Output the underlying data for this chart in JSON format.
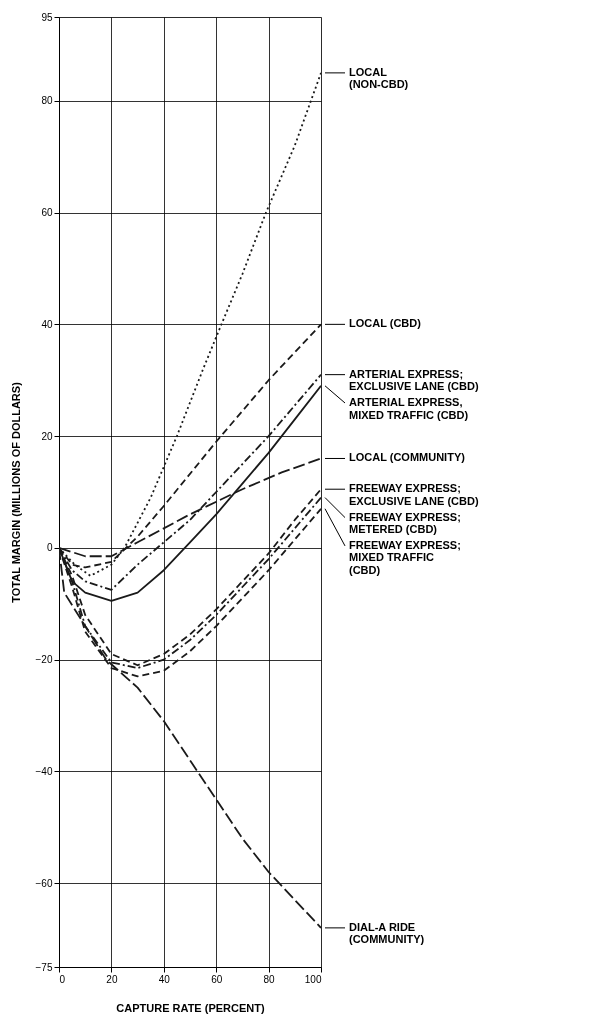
{
  "chart_data": {
    "type": "line",
    "xlabel": "CAPTURE RATE (PERCENT)",
    "ylabel": "TOTAL MARGIN (MILLIONS OF DOLLARS)",
    "xlim": [
      0,
      100
    ],
    "xticks": [
      0,
      20,
      40,
      60,
      80,
      100
    ],
    "ylim": [
      -75,
      95
    ],
    "yticks": [
      -75,
      -60,
      -40,
      -20,
      0,
      20,
      40,
      60,
      80,
      95
    ],
    "grid": true,
    "legend": false,
    "series": [
      {
        "name": "LOCAL\n(NON-CBD)",
        "color": "#1a1a1a",
        "line_style": "dotted",
        "x": [
          0,
          6,
          12,
          20,
          25,
          35,
          45,
          55,
          62,
          70,
          79,
          90,
          100
        ],
        "values": [
          0,
          -3,
          -5,
          -3,
          0,
          9,
          20,
          32,
          40,
          49,
          60,
          72,
          85
        ]
      },
      {
        "name": "LOCAL (CBD)",
        "color": "#1a1a1a",
        "line_style": "dashed",
        "x": [
          0,
          5,
          10,
          20,
          30,
          40,
          60,
          80,
          100
        ],
        "values": [
          0,
          -3,
          -3.5,
          -2.5,
          2,
          7.5,
          19,
          30,
          40
        ]
      },
      {
        "name": "ARTERIAL EXPRESS;\nEXCLUSIVE LANE (CBD)",
        "color": "#1a1a1a",
        "line_style": "dashdot",
        "x": [
          0,
          5,
          10,
          20,
          30,
          40,
          50,
          60,
          70,
          80,
          90,
          100
        ],
        "values": [
          0,
          -4,
          -6,
          -7.5,
          -3,
          1,
          5,
          10,
          15,
          20,
          25.5,
          31
        ]
      },
      {
        "name": "ARTERIAL EXPRESS,\nMIXED TRAFFIC (CBD)",
        "color": "#1a1a1a",
        "line_style": "solid",
        "x": [
          0,
          5,
          10,
          20,
          30,
          40,
          50,
          60,
          70,
          80,
          90,
          100
        ],
        "values": [
          0,
          -6,
          -8,
          -9.5,
          -8,
          -4,
          1,
          6,
          11.5,
          17,
          23,
          29
        ]
      },
      {
        "name": "LOCAL (COMMUNITY)",
        "color": "#1a1a1a",
        "line_style": "longdash",
        "x": [
          0,
          10,
          20,
          30,
          50,
          70,
          85,
          100
        ],
        "values": [
          0,
          -1.5,
          -1.5,
          1,
          6,
          10.5,
          13.5,
          16
        ]
      },
      {
        "name": "FREEWAY EXPRESS;\nEXCLUSIVE LANE (CBD)",
        "color": "#1a1a1a",
        "line_style": "dashed",
        "x": [
          0,
          5,
          10,
          20,
          30,
          40,
          50,
          60,
          70,
          80,
          90,
          100
        ],
        "values": [
          0,
          -5,
          -12,
          -19,
          -21,
          -19,
          -15.5,
          -11,
          -6,
          -1,
          5,
          10.5
        ]
      },
      {
        "name": "FREEWAY EXPRESS;\nMETERED (CBD)",
        "color": "#1a1a1a",
        "line_style": "dashdot",
        "x": [
          0,
          5,
          10,
          20,
          30,
          40,
          50,
          60,
          70,
          80,
          90,
          100
        ],
        "values": [
          0,
          -6,
          -14,
          -20.5,
          -21.5,
          -20,
          -16.5,
          -12,
          -7,
          -2,
          3.5,
          9
        ]
      },
      {
        "name": "FREEWAY EXPRESS;\nMIXED TRAFFIC\n(CBD)",
        "color": "#1a1a1a",
        "line_style": "dashed",
        "x": [
          0,
          5,
          10,
          20,
          30,
          40,
          50,
          60,
          70,
          80,
          90,
          100
        ],
        "values": [
          0,
          -7,
          -15,
          -21.5,
          -23,
          -22,
          -18.5,
          -14,
          -9,
          -4,
          1.5,
          7
        ]
      },
      {
        "name": "DIAL-A RIDE\n(COMMUNITY)",
        "color": "#1a1a1a",
        "line_style": "longdash",
        "x": [
          0,
          2,
          10,
          18,
          30,
          40,
          50,
          60,
          70,
          80,
          90,
          100
        ],
        "values": [
          0,
          -8,
          -14,
          -20,
          -25,
          -31,
          -38,
          -45,
          -52,
          -58,
          -63,
          -68
        ]
      }
    ]
  }
}
